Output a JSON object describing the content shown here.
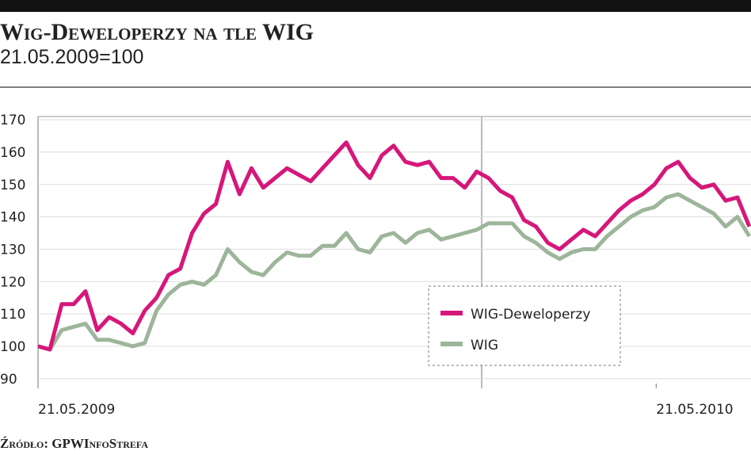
{
  "chart_data": {
    "type": "line",
    "title": "Wig-Deweloperzy na tle WIG",
    "subtitle": "21.05.2009=100",
    "source": "Źródło: GPWInfoStrefa",
    "x": [
      0,
      7,
      14,
      21,
      28,
      35,
      42,
      49,
      56,
      63,
      70,
      77,
      84,
      91,
      98,
      105,
      112,
      119,
      126,
      133,
      140,
      147,
      154,
      161,
      168,
      175,
      182,
      189,
      196,
      203,
      210,
      217,
      224,
      231,
      238,
      245,
      252,
      259,
      266,
      273,
      280,
      287,
      294,
      301,
      308,
      315,
      322,
      329,
      336,
      343,
      350,
      357,
      364,
      371,
      378,
      385,
      392,
      399,
      406,
      413,
      420
    ],
    "xlim": [
      0,
      421
    ],
    "xticks": [
      {
        "value": 0,
        "label": "21.05.2009"
      },
      {
        "value": 365,
        "label": "21.05.2010"
      }
    ],
    "ylim": [
      87,
      171
    ],
    "yticks": [
      90,
      100,
      110,
      120,
      130,
      140,
      150,
      160,
      170
    ],
    "grid": true,
    "series": [
      {
        "name": "WIG-Deweloperzy",
        "color": "#d6177a",
        "values": [
          100,
          99,
          113,
          113,
          117,
          105,
          109,
          107,
          104,
          111,
          115,
          122,
          124,
          135,
          141,
          144,
          157,
          147,
          155,
          149,
          152,
          155,
          153,
          151,
          155,
          159,
          163,
          156,
          152,
          159,
          162,
          157,
          156,
          157,
          152,
          152,
          149,
          154,
          152,
          148,
          146,
          139,
          137,
          132,
          130,
          133,
          136,
          134,
          138,
          142,
          145,
          147,
          150,
          155,
          157,
          152,
          149,
          150,
          145,
          146,
          137
        ]
      },
      {
        "name": "WIG",
        "color": "#9db59a",
        "values": [
          100,
          99,
          105,
          106,
          107,
          102,
          102,
          101,
          100,
          101,
          111,
          116,
          119,
          120,
          119,
          122,
          130,
          126,
          123,
          122,
          126,
          129,
          128,
          128,
          131,
          131,
          135,
          130,
          129,
          134,
          135,
          132,
          135,
          136,
          133,
          134,
          135,
          136,
          138,
          138,
          138,
          134,
          132,
          129,
          127,
          129,
          130,
          130,
          134,
          137,
          140,
          142,
          143,
          146,
          147,
          145,
          143,
          141,
          137,
          140,
          134
        ]
      }
    ]
  }
}
